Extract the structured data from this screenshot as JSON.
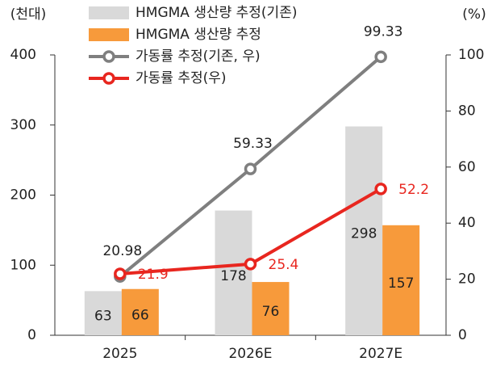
{
  "chart_data": {
    "type": "bar",
    "y_unit": "(천대)",
    "y2_unit": "(%)",
    "categories": [
      "2025",
      "2026E",
      "2027E"
    ],
    "ylim": [
      0,
      400
    ],
    "yticks": [
      0,
      100,
      200,
      300,
      400
    ],
    "y2lim": [
      0,
      100
    ],
    "y2ticks": [
      0,
      20,
      40,
      60,
      80,
      100
    ],
    "series": [
      {
        "name": "HMGMA 생산량 추정(기존)",
        "type": "bar",
        "color": "#d9d9d9",
        "label_color": "#222222",
        "values": [
          63,
          178,
          298
        ]
      },
      {
        "name": "HMGMA 생산량 추정",
        "type": "bar",
        "color": "#f79a3b",
        "label_color": "#222222",
        "values": [
          66,
          76,
          157
        ]
      },
      {
        "name": "가동률 추정(기존, 우)",
        "type": "line",
        "axis": "y2",
        "color": "#7f7f7f",
        "label_color": "#222222",
        "label_pos": "above",
        "values": [
          20.98,
          59.33,
          99.33
        ]
      },
      {
        "name": "가동률 추정(우)",
        "type": "line",
        "axis": "y2",
        "color": "#e8261f",
        "label_color": "#e8261f",
        "label_pos": "right",
        "values": [
          21.9,
          25.4,
          52.2
        ]
      }
    ]
  }
}
